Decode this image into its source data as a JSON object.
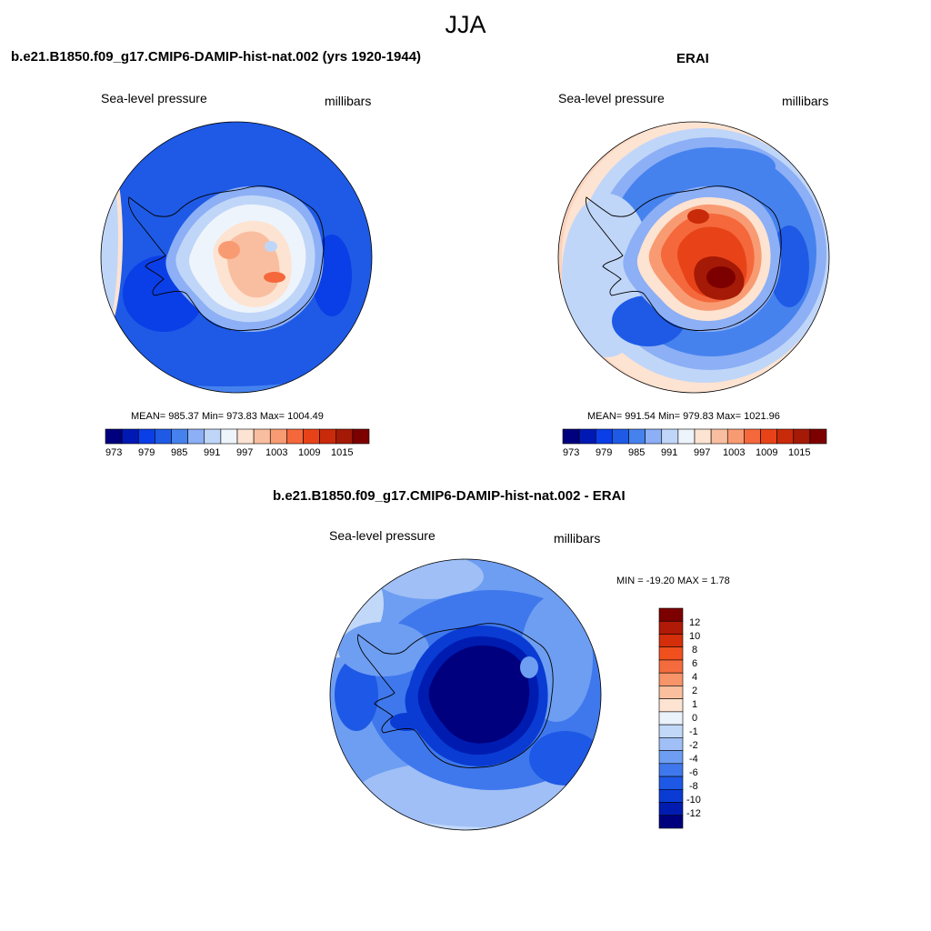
{
  "title": "JJA",
  "panels": [
    {
      "title": "b.e21.B1850.f09_g17.CMIP6-DAMIP-hist-nat.002 (yrs 1920-1944)",
      "variable": "Sea-level pressure",
      "units": "millibars",
      "stats": "MEAN= 985.37  Min= 973.83  Max= 1004.49",
      "colorbar": {
        "orientation": "horizontal",
        "colors": [
          "#00007e",
          "#0019b4",
          "#0a3ee6",
          "#1e5ae6",
          "#4682ee",
          "#8caff5",
          "#c0d6f8",
          "#eef4fb",
          "#fde3d1",
          "#f9bea0",
          "#f89b73",
          "#f4683c",
          "#e84318",
          "#c92a0a",
          "#a41a06",
          "#7d0000"
        ],
        "tick_labels": [
          "973",
          "979",
          "985",
          "991",
          "997",
          "1003",
          "1009",
          "1015"
        ]
      }
    },
    {
      "title": "ERAI",
      "variable": "Sea-level pressure",
      "units": "millibars",
      "stats": "MEAN= 991.54  Min= 979.83  Max= 1021.96",
      "colorbar": {
        "orientation": "horizontal",
        "colors": [
          "#00007e",
          "#0019b4",
          "#0a3ee6",
          "#1e5ae6",
          "#4682ee",
          "#8caff5",
          "#c0d6f8",
          "#eef4fb",
          "#fde3d1",
          "#f9bea0",
          "#f89b73",
          "#f4683c",
          "#e84318",
          "#c92a0a",
          "#a41a06",
          "#7d0000"
        ],
        "tick_labels": [
          "973",
          "979",
          "985",
          "991",
          "997",
          "1003",
          "1009",
          "1015"
        ]
      }
    },
    {
      "title": "b.e21.B1850.f09_g17.CMIP6-DAMIP-hist-nat.002 - ERAI",
      "variable": "Sea-level pressure",
      "units": "millibars",
      "stats": "MIN = -19.20 MAX =   1.78",
      "colorbar": {
        "orientation": "vertical",
        "colors": [
          "#7d0000",
          "#b01a06",
          "#d42f0a",
          "#f0501e",
          "#f46c3e",
          "#f7946a",
          "#fabf9d",
          "#fde4d2",
          "#eaf2fb",
          "#c2d8f8",
          "#9fbff6",
          "#6e9ef2",
          "#3f78ec",
          "#1e58e6",
          "#0a3cd4",
          "#001cb0",
          "#00007e"
        ],
        "tick_labels": [
          "12",
          "10",
          "8",
          "6",
          "4",
          "2",
          "1",
          "0",
          "-1",
          "-2",
          "-4",
          "-6",
          "-8",
          "-10",
          "-12"
        ]
      }
    }
  ],
  "colors": {
    "deep_blue": "#00007e",
    "mid_blue": "#1e5ae6",
    "light_blue": "#c0d6f8",
    "peach": "#fde3d1",
    "red": "#e84318",
    "dark_red": "#7d0000"
  }
}
